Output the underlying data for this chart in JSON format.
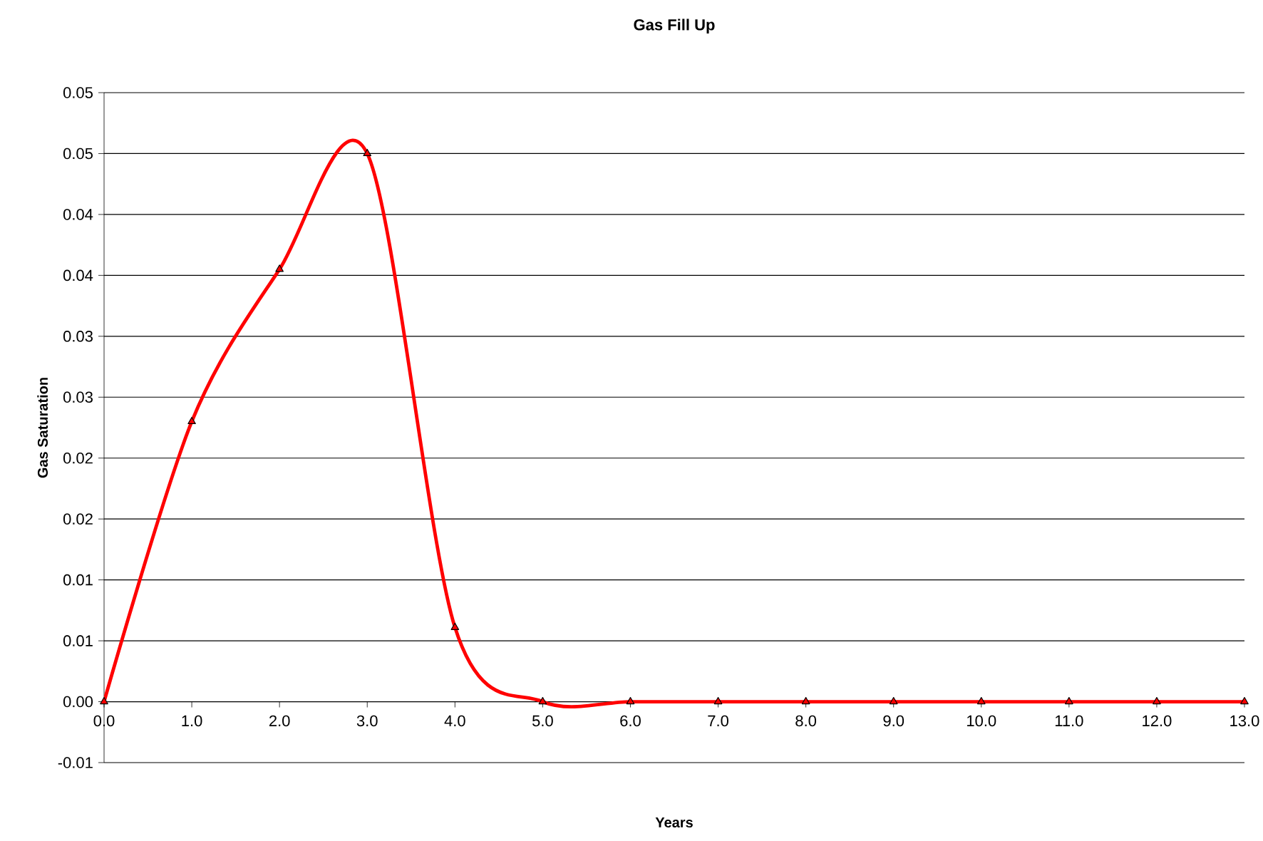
{
  "chart_data": {
    "type": "line",
    "title": "Gas Fill Up",
    "xlabel": "Years",
    "ylabel": "Gas Saturation",
    "x": [
      0,
      1,
      2,
      3,
      4,
      5,
      6,
      7,
      8,
      9,
      10,
      11,
      12,
      13
    ],
    "series": [
      {
        "color": "#ff0000",
        "values": [
          0,
          0.023,
          0.0355,
          0.045,
          0.0061,
          0,
          0,
          0,
          0,
          0,
          0,
          0,
          0,
          0
        ]
      }
    ],
    "xlim": [
      0,
      13
    ],
    "xticks": [
      {
        "value": 0,
        "label": "0.0"
      },
      {
        "value": 1,
        "label": "1.0"
      },
      {
        "value": 2,
        "label": "2.0"
      },
      {
        "value": 3,
        "label": "3.0"
      },
      {
        "value": 4,
        "label": "4.0"
      },
      {
        "value": 5,
        "label": "5.0"
      },
      {
        "value": 6,
        "label": "6.0"
      },
      {
        "value": 7,
        "label": "7.0"
      },
      {
        "value": 8,
        "label": "8.0"
      },
      {
        "value": 9,
        "label": "9.0"
      },
      {
        "value": 10,
        "label": "10.0"
      },
      {
        "value": 11,
        "label": "11.0"
      },
      {
        "value": 12,
        "label": "12.0"
      },
      {
        "value": 13,
        "label": "13.0"
      }
    ],
    "ylim": [
      -0.005,
      0.05
    ],
    "yticks": [
      {
        "value": -0.005,
        "label": "-0.01"
      },
      {
        "value": 0,
        "label": "0.00"
      },
      {
        "value": 0.005,
        "label": "0.01"
      },
      {
        "value": 0.01,
        "label": "0.01"
      },
      {
        "value": 0.015,
        "label": "0.02"
      },
      {
        "value": 0.02,
        "label": "0.02"
      },
      {
        "value": 0.025,
        "label": "0.03"
      },
      {
        "value": 0.03,
        "label": "0.03"
      },
      {
        "value": 0.035,
        "label": "0.04"
      },
      {
        "value": 0.04,
        "label": "0.04"
      },
      {
        "value": 0.045,
        "label": "0.05"
      },
      {
        "value": 0.05,
        "label": "0.05"
      }
    ],
    "grid": "y",
    "marker": "triangle",
    "line_style": "solid"
  }
}
